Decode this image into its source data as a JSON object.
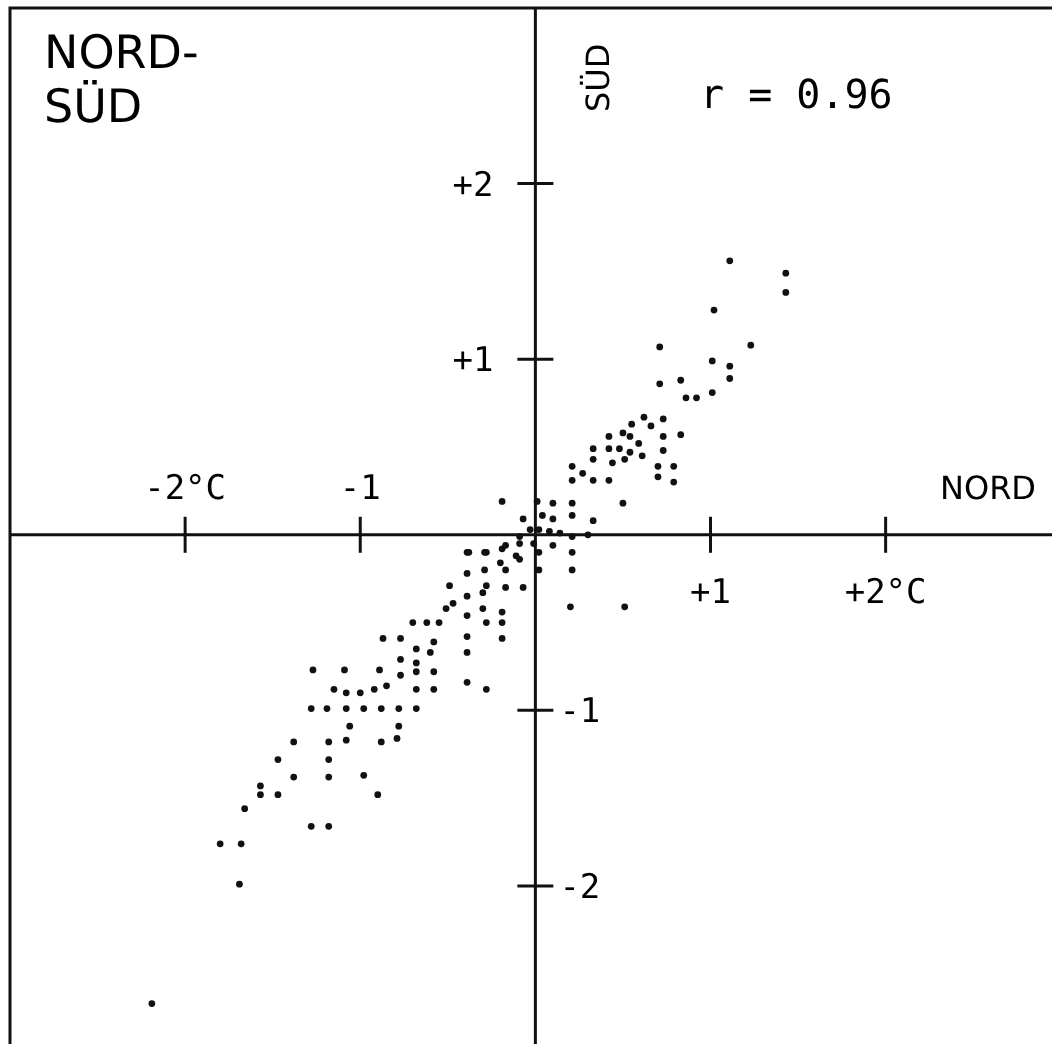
{
  "chart_data": {
    "type": "scatter",
    "title": "NORD-SÜD",
    "xlabel": "NORD",
    "y2label": "SÜD",
    "annotations": [
      "r = 0.96"
    ],
    "xlim": [
      -3,
      2.95
    ],
    "ylim": [
      -2.9,
      3
    ],
    "xticks": [
      {
        "value": 1,
        "label": "+1"
      },
      {
        "value": 2,
        "label": "+2°C"
      }
    ],
    "x2lim": [
      -3,
      2.95
    ],
    "x2ticks": [
      {
        "value": -2,
        "label": "-2°C"
      },
      {
        "value": -1,
        "label": "-1"
      }
    ],
    "yticks": [
      {
        "value": 2,
        "label": "+2"
      },
      {
        "value": 1,
        "label": "+1"
      }
    ],
    "y2lim": [
      -2.9,
      3
    ],
    "y2ticks": [
      {
        "value": -1,
        "label": "-1"
      },
      {
        "value": -2,
        "label": "-2"
      }
    ],
    "grid": false,
    "marker": "circle",
    "series": [
      {
        "color": "#111111",
        "x": [
          -2.19,
          -1.69,
          -1.8,
          -1.68,
          -1.28,
          -1.18,
          -1.66,
          -1.57,
          -1.57,
          -1.47,
          -1.47,
          -1.38,
          -1.38,
          -1.18,
          -1.18,
          -1.18,
          -0.98,
          -0.9,
          -1.27,
          -1.09,
          -1.28,
          -1.19,
          -1.08,
          -1.08,
          -1.06,
          -0.98,
          -1.15,
          -1.08,
          -1.0,
          -0.92,
          -0.88,
          -0.88,
          -0.79,
          -0.78,
          -0.78,
          -0.68,
          -0.89,
          -0.85,
          -0.77,
          -0.68,
          -0.68,
          -0.58,
          -0.58,
          -0.39,
          -0.28,
          -0.87,
          -0.77,
          -0.77,
          -0.68,
          -0.68,
          -0.6,
          -0.58,
          -0.62,
          -0.7,
          -0.55,
          -0.51,
          -0.47,
          -0.49,
          -0.39,
          -0.39,
          -0.39,
          -0.39,
          -0.3,
          -0.3,
          -0.28,
          -0.19,
          -0.19,
          -0.19,
          -0.39,
          -0.39,
          -0.29,
          -0.29,
          -0.28,
          -0.17,
          -0.07,
          -0.19,
          -0.17,
          -0.09,
          -0.09,
          1.11,
          1.43,
          1.43,
          1.02,
          1.23,
          0.71,
          1.01,
          1.11,
          1.11,
          0.71,
          0.83,
          0.86,
          0.92,
          1.01,
          0.83,
          0.73,
          0.73,
          0.73,
          0.62,
          0.66,
          0.55,
          0.54,
          0.5,
          0.59,
          0.61,
          0.54,
          0.48,
          0.42,
          0.42,
          0.42,
          0.44,
          0.51,
          0.7,
          0.7,
          0.79,
          0.79,
          0.5,
          0.33,
          0.33,
          0.33,
          0.21,
          0.21,
          0.27,
          -0.19,
          0.01,
          0.1,
          0.21,
          0.21,
          0.33,
          0.1,
          0.04,
          -0.07,
          -0.03,
          0.02,
          0.08,
          0.14,
          0.21,
          -0.09,
          -0.01,
          0.1,
          0.21,
          0.21,
          0.02,
          0.02,
          -0.17,
          -0.11,
          -0.2,
          -0.28,
          -0.38,
          0.2,
          0.51,
          0.3
        ],
        "values": [
          -2.67,
          -1.99,
          -1.76,
          -1.76,
          -1.66,
          -1.66,
          -1.56,
          -1.43,
          -1.48,
          -1.48,
          -1.28,
          -1.38,
          -1.18,
          -1.18,
          -1.28,
          -1.38,
          -1.37,
          -1.48,
          -0.77,
          -0.77,
          -0.99,
          -0.99,
          -0.99,
          -1.17,
          -1.09,
          -0.99,
          -0.88,
          -0.9,
          -0.9,
          -0.88,
          -0.99,
          -1.18,
          -1.16,
          -1.09,
          -0.99,
          -0.99,
          -0.77,
          -0.86,
          -0.8,
          -0.78,
          -0.88,
          -0.78,
          -0.88,
          -0.84,
          -0.88,
          -0.59,
          -0.59,
          -0.71,
          -0.65,
          -0.73,
          -0.67,
          -0.61,
          -0.5,
          -0.5,
          -0.5,
          -0.42,
          -0.39,
          -0.29,
          -0.35,
          -0.46,
          -0.58,
          -0.67,
          -0.33,
          -0.42,
          -0.5,
          -0.44,
          -0.5,
          -0.59,
          -0.22,
          -0.1,
          -0.1,
          -0.2,
          -0.29,
          -0.3,
          -0.3,
          -0.08,
          -0.2,
          -0.14,
          -0.05,
          1.56,
          1.49,
          1.38,
          1.28,
          1.08,
          1.07,
          0.99,
          0.96,
          0.89,
          0.86,
          0.88,
          0.78,
          0.78,
          0.81,
          0.57,
          0.66,
          0.56,
          0.48,
          0.67,
          0.62,
          0.63,
          0.56,
          0.58,
          0.52,
          0.45,
          0.47,
          0.49,
          0.56,
          0.49,
          0.31,
          0.41,
          0.43,
          0.39,
          0.33,
          0.39,
          0.3,
          0.18,
          0.49,
          0.43,
          0.31,
          0.39,
          0.31,
          0.35,
          0.19,
          0.19,
          0.18,
          0.18,
          0.11,
          0.08,
          0.09,
          0.11,
          0.09,
          0.03,
          0.03,
          0.02,
          0.01,
          -0.01,
          -0.01,
          -0.05,
          -0.06,
          -0.1,
          -0.2,
          -0.1,
          -0.2,
          -0.06,
          -0.12,
          -0.16,
          -0.1,
          -0.1,
          -0.41,
          -0.41,
          0.0
        ]
      }
    ]
  }
}
